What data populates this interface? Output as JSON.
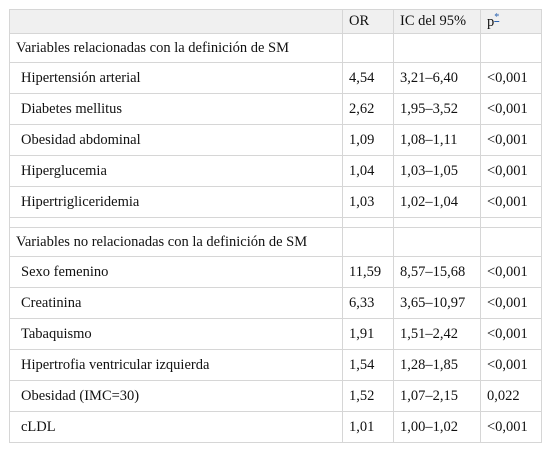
{
  "header": {
    "col1": "",
    "col2": "OR",
    "col3": "IC del 95%",
    "col4": "p",
    "col4_note": "*"
  },
  "sections": [
    {
      "title": "Variables relacionadas con la definición de SM",
      "rows": [
        {
          "label": "Hipertensión arterial",
          "or": "4,54",
          "ci": "3,21–6,40",
          "p": "<0,001"
        },
        {
          "label": "Diabetes mellitus",
          "or": "2,62",
          "ci": "1,95–3,52",
          "p": "<0,001"
        },
        {
          "label": "Obesidad abdominal",
          "or": "1,09",
          "ci": "1,08–1,11",
          "p": "<0,001"
        },
        {
          "label": "Hiperglucemia",
          "or": "1,04",
          "ci": "1,03–1,05",
          "p": "<0,001"
        },
        {
          "label": "Hipertrigliceridemia",
          "or": "1,03",
          "ci": "1,02–1,04",
          "p": "<0,001"
        }
      ]
    },
    {
      "title": "Variables no relacionadas con la definición de SM",
      "rows": [
        {
          "label": "Sexo femenino",
          "or": "11,59",
          "ci": "8,57–15,68",
          "p": "<0,001"
        },
        {
          "label": "Creatinina",
          "or": "6,33",
          "ci": "3,65–10,97",
          "p": "<0,001"
        },
        {
          "label": "Tabaquismo",
          "or": "1,91",
          "ci": "1,51–2,42",
          "p": "<0,001"
        },
        {
          "label": "Hipertrofia ventricular izquierda",
          "or": "1,54",
          "ci": "1,28–1,85",
          "p": "<0,001"
        },
        {
          "label": "Obesidad (IMC=30)",
          "or": "1,52",
          "ci": "1,07–2,15",
          "p": "0,022"
        },
        {
          "label": "cLDL",
          "or": "1,01",
          "ci": "1,00–1,02",
          "p": "<0,001"
        }
      ]
    }
  ]
}
